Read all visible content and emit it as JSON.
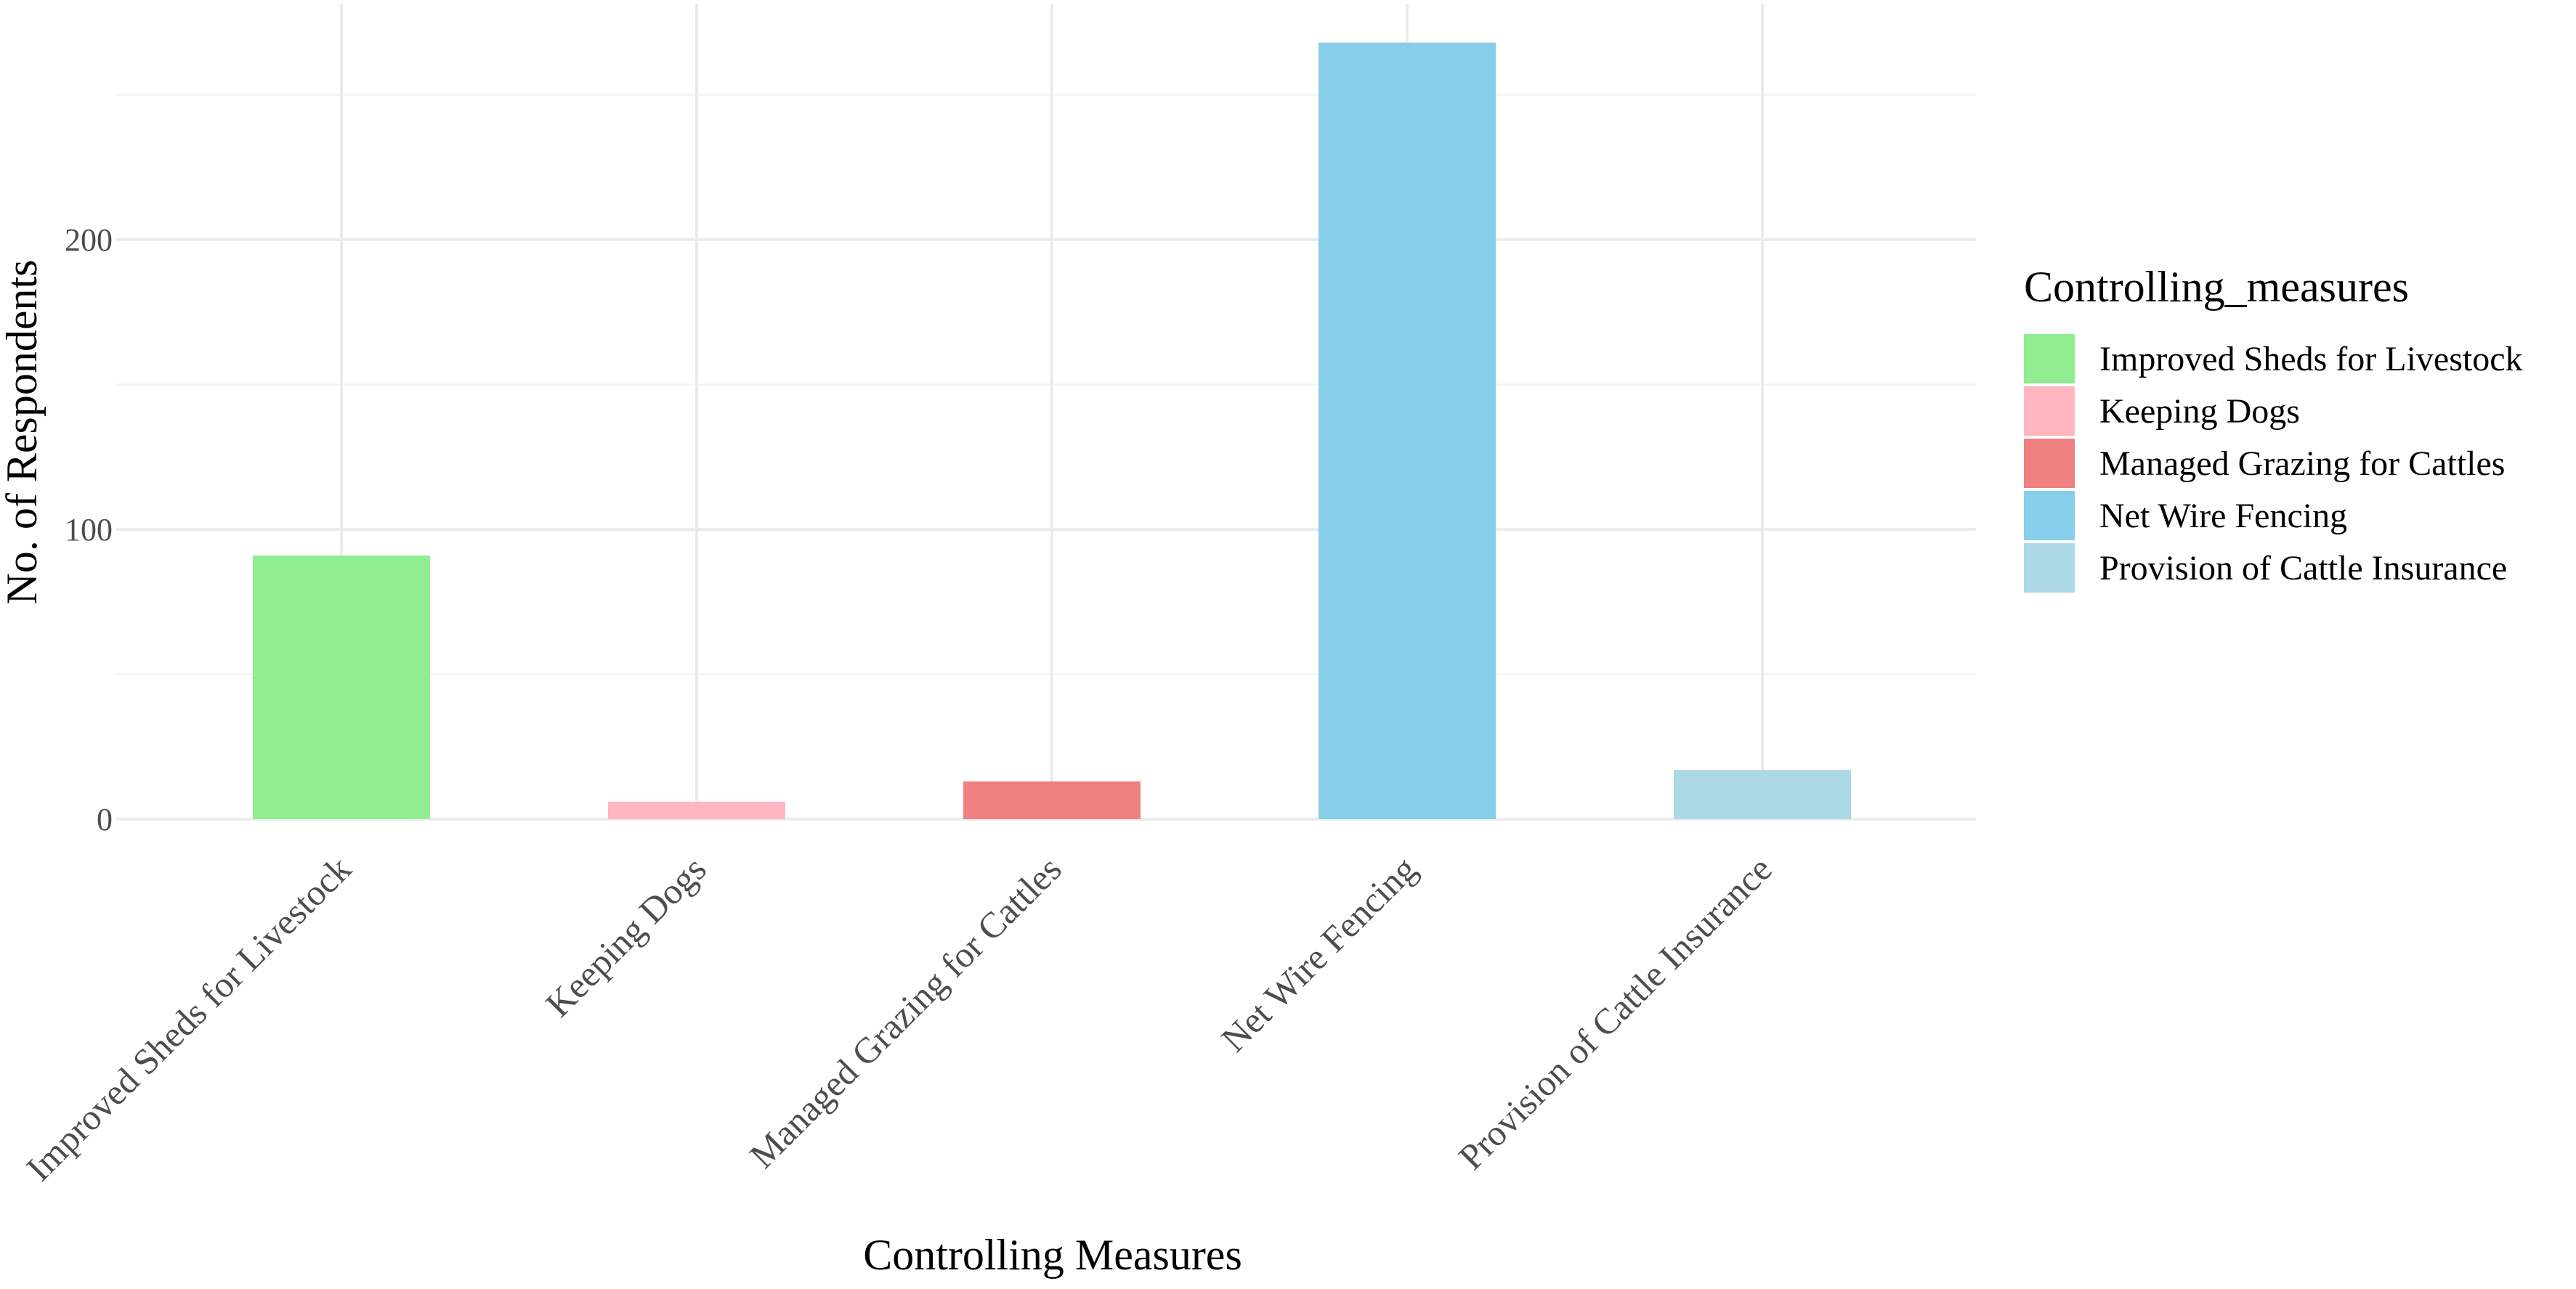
{
  "chart_data": {
    "type": "bar",
    "categories": [
      "Improved Sheds for Livestock",
      "Keeping Dogs",
      "Managed Grazing for Cattles",
      "Net Wire Fencing",
      "Provision of Cattle Insurance"
    ],
    "values": [
      91,
      6,
      13,
      268,
      17
    ],
    "colors": [
      "#90ee90",
      "#ffb6c1",
      "#f08080",
      "#87ceeb",
      "#add8e6"
    ],
    "xlabel": "Controlling Measures",
    "ylabel": "No. of Respondents",
    "ylim": [
      0,
      280
    ],
    "yticks": [
      0,
      100,
      200
    ],
    "grid": true,
    "legend": {
      "title": "Controlling_measures",
      "placement": "right",
      "entries": [
        "Improved Sheds for Livestock",
        "Keeping Dogs",
        "Managed Grazing for Cattles",
        "Net Wire Fencing",
        "Provision of Cattle Insurance"
      ]
    }
  }
}
